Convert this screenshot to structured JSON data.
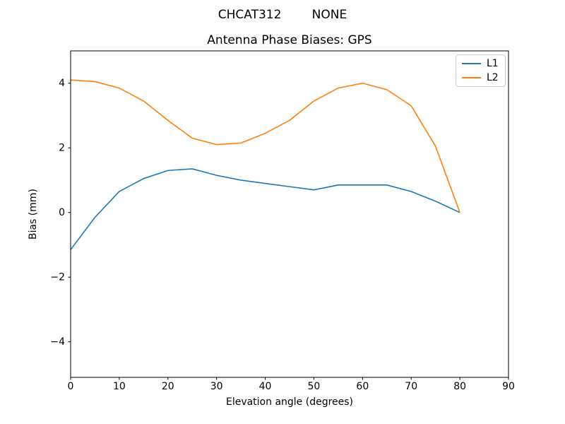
{
  "figure": {
    "suptitle": "CHCAT312        NONE",
    "background": "#ffffff",
    "text_color": "#000000",
    "spine_color": "#000000",
    "legend_border_color": "#cccccc"
  },
  "chart_data": {
    "type": "line",
    "title": "Antenna Phase Biases: GPS",
    "xlabel": "Elevation angle (degrees)",
    "ylabel": "Bias (mm)",
    "xlim": [
      0,
      90
    ],
    "ylim": [
      -5.1,
      5.0
    ],
    "xticks": [
      0,
      10,
      20,
      30,
      40,
      50,
      60,
      70,
      80,
      90
    ],
    "yticks": [
      -4,
      -2,
      0,
      2,
      4
    ],
    "grid": false,
    "legend": {
      "position": "upper right",
      "entries": [
        "L1",
        "L2"
      ]
    },
    "x": [
      0,
      5,
      10,
      15,
      20,
      25,
      30,
      35,
      40,
      45,
      50,
      55,
      60,
      65,
      70,
      75,
      80
    ],
    "series": [
      {
        "name": "L1",
        "color": "#1f77b4",
        "values": [
          -1.15,
          -0.15,
          0.65,
          1.05,
          1.3,
          1.35,
          1.15,
          1.0,
          0.9,
          0.8,
          0.7,
          0.85,
          0.85,
          0.85,
          0.65,
          0.35,
          0.0
        ]
      },
      {
        "name": "L2",
        "color": "#ff7f0e",
        "values": [
          4.1,
          4.05,
          3.85,
          3.45,
          2.85,
          2.3,
          2.1,
          2.15,
          2.45,
          2.85,
          3.45,
          3.85,
          4.0,
          3.8,
          3.3,
          2.05,
          0.0
        ]
      }
    ]
  }
}
